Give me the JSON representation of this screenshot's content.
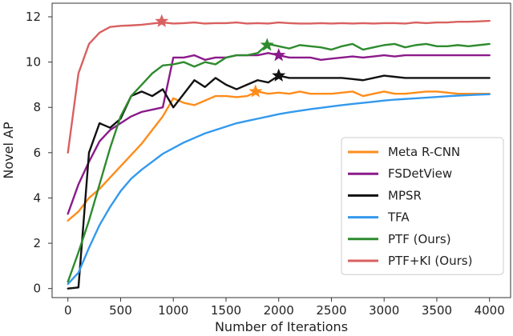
{
  "chart_data": {
    "type": "line",
    "title": "",
    "xlabel": "Number of Iterations",
    "ylabel": "Novel AP",
    "xlim": [
      -150,
      4200
    ],
    "ylim": [
      -0.4,
      12.6
    ],
    "xticks": [
      0,
      500,
      1000,
      1500,
      2000,
      2500,
      3000,
      3500,
      4000
    ],
    "yticks": [
      0,
      2,
      4,
      6,
      8,
      10,
      12
    ],
    "legend_position": "bottom-right",
    "series": [
      {
        "name": "Meta R-CNN",
        "color": "#ff8c1a",
        "x": [
          0,
          100,
          200,
          300,
          400,
          500,
          600,
          700,
          800,
          900,
          1000,
          1100,
          1200,
          1300,
          1400,
          1500,
          1600,
          1700,
          1800,
          1900,
          2000,
          2100,
          2200,
          2300,
          2400,
          2500,
          2600,
          2700,
          2800,
          2900,
          3000,
          3100,
          3200,
          3300,
          3400,
          3500,
          3600,
          3700,
          3800,
          3900,
          4000
        ],
        "y": [
          3.0,
          3.4,
          4.0,
          4.4,
          4.9,
          5.4,
          5.9,
          6.4,
          7.0,
          7.6,
          8.4,
          8.2,
          8.1,
          8.3,
          8.5,
          8.5,
          8.45,
          8.5,
          8.7,
          8.6,
          8.65,
          8.6,
          8.7,
          8.6,
          8.6,
          8.6,
          8.65,
          8.7,
          8.5,
          8.6,
          8.7,
          8.6,
          8.6,
          8.65,
          8.7,
          8.7,
          8.65,
          8.6,
          8.6,
          8.6,
          8.6
        ],
        "star": {
          "x": 1780,
          "y": 8.7
        }
      },
      {
        "name": "FSDetView",
        "color": "#8b1a8b",
        "x": [
          0,
          100,
          200,
          300,
          400,
          500,
          600,
          700,
          800,
          900,
          1000,
          1100,
          1200,
          1300,
          1400,
          1500,
          1600,
          1700,
          1800,
          1900,
          2000,
          2100,
          2200,
          2300,
          2400,
          2500,
          2600,
          2700,
          2800,
          2900,
          3000,
          3100,
          3200,
          3300,
          3400,
          3500,
          3600,
          3700,
          3800,
          3900,
          4000
        ],
        "y": [
          3.3,
          4.6,
          5.6,
          6.5,
          7.0,
          7.3,
          7.6,
          7.8,
          7.9,
          8.0,
          10.2,
          10.2,
          10.3,
          10.1,
          10.2,
          10.2,
          10.3,
          10.3,
          10.3,
          10.4,
          10.3,
          10.2,
          10.2,
          10.2,
          10.1,
          10.15,
          10.2,
          10.25,
          10.2,
          10.25,
          10.3,
          10.25,
          10.3,
          10.3,
          10.3,
          10.3,
          10.3,
          10.3,
          10.3,
          10.3,
          10.3
        ],
        "star": {
          "x": 2000,
          "y": 10.3
        }
      },
      {
        "name": "MPSR",
        "color": "#111111",
        "x": [
          0,
          100,
          200,
          300,
          400,
          500,
          600,
          700,
          800,
          900,
          1000,
          1100,
          1200,
          1300,
          1400,
          1500,
          1600,
          1700,
          1800,
          1900,
          2000,
          2100,
          2200,
          2300,
          2400,
          2500,
          2600,
          2700,
          2800,
          2900,
          3000,
          3100,
          3200,
          3300,
          3400,
          3500,
          3600,
          3700,
          3800,
          3900,
          4000
        ],
        "y": [
          0.0,
          0.05,
          6.0,
          7.3,
          7.1,
          7.5,
          8.5,
          8.7,
          8.5,
          8.8,
          8.0,
          8.6,
          9.2,
          8.9,
          9.3,
          9.0,
          8.8,
          9.0,
          9.2,
          9.1,
          9.4,
          9.3,
          9.3,
          9.3,
          9.3,
          9.3,
          9.3,
          9.25,
          9.2,
          9.3,
          9.4,
          9.35,
          9.3,
          9.3,
          9.3,
          9.3,
          9.3,
          9.3,
          9.3,
          9.3,
          9.3
        ],
        "star": {
          "x": 2000,
          "y": 9.4
        }
      },
      {
        "name": "TFA",
        "color": "#3399ee",
        "x": [
          0,
          100,
          200,
          300,
          400,
          500,
          600,
          700,
          800,
          900,
          1000,
          1100,
          1200,
          1300,
          1400,
          1500,
          1600,
          1700,
          1800,
          1900,
          2000,
          2100,
          2200,
          2300,
          2400,
          2500,
          2600,
          2700,
          2800,
          2900,
          3000,
          3100,
          3200,
          3300,
          3400,
          3500,
          3600,
          3700,
          3800,
          3900,
          4000
        ],
        "y": [
          0.2,
          0.7,
          1.8,
          2.8,
          3.6,
          4.3,
          4.85,
          5.25,
          5.6,
          5.95,
          6.2,
          6.45,
          6.65,
          6.85,
          7.0,
          7.15,
          7.3,
          7.4,
          7.5,
          7.6,
          7.7,
          7.78,
          7.85,
          7.92,
          7.98,
          8.04,
          8.1,
          8.15,
          8.2,
          8.25,
          8.3,
          8.34,
          8.37,
          8.4,
          8.43,
          8.46,
          8.49,
          8.52,
          8.54,
          8.56,
          8.58
        ]
      },
      {
        "name": "PTF (Ours)",
        "color": "#2e8b2e",
        "x": [
          0,
          100,
          200,
          300,
          400,
          500,
          600,
          700,
          800,
          900,
          1000,
          1100,
          1200,
          1300,
          1400,
          1500,
          1600,
          1700,
          1800,
          1900,
          2000,
          2100,
          2200,
          2300,
          2400,
          2500,
          2600,
          2700,
          2800,
          2900,
          3000,
          3100,
          3200,
          3300,
          3400,
          3500,
          3600,
          3700,
          3800,
          3900,
          4000
        ],
        "y": [
          0.3,
          1.6,
          3.0,
          4.6,
          6.2,
          7.6,
          8.5,
          9.0,
          9.5,
          9.85,
          9.9,
          10.0,
          9.8,
          10.0,
          9.9,
          10.2,
          10.3,
          10.3,
          10.4,
          10.8,
          10.7,
          10.6,
          10.75,
          10.7,
          10.65,
          10.55,
          10.7,
          10.8,
          10.55,
          10.65,
          10.75,
          10.8,
          10.65,
          10.75,
          10.8,
          10.7,
          10.7,
          10.75,
          10.7,
          10.75,
          10.8
        ],
        "star": {
          "x": 1890,
          "y": 10.75
        }
      },
      {
        "name": "PTF+KI (Ours)",
        "color": "#d96060",
        "x": [
          0,
          100,
          200,
          300,
          400,
          500,
          600,
          700,
          800,
          900,
          1000,
          1100,
          1200,
          1300,
          1400,
          1500,
          1600,
          1700,
          1800,
          1900,
          2000,
          2100,
          2200,
          2300,
          2400,
          2500,
          2600,
          2700,
          2800,
          2900,
          3000,
          3100,
          3200,
          3300,
          3400,
          3500,
          3600,
          3700,
          3800,
          3900,
          4000
        ],
        "y": [
          6.0,
          9.5,
          10.8,
          11.3,
          11.55,
          11.6,
          11.62,
          11.65,
          11.7,
          11.75,
          11.7,
          11.72,
          11.75,
          11.7,
          11.72,
          11.72,
          11.75,
          11.7,
          11.72,
          11.7,
          11.75,
          11.72,
          11.7,
          11.7,
          11.72,
          11.7,
          11.72,
          11.7,
          11.72,
          11.7,
          11.72,
          11.72,
          11.7,
          11.75,
          11.72,
          11.75,
          11.75,
          11.78,
          11.78,
          11.8,
          11.82
        ],
        "star": {
          "x": 890,
          "y": 11.8
        }
      }
    ]
  }
}
